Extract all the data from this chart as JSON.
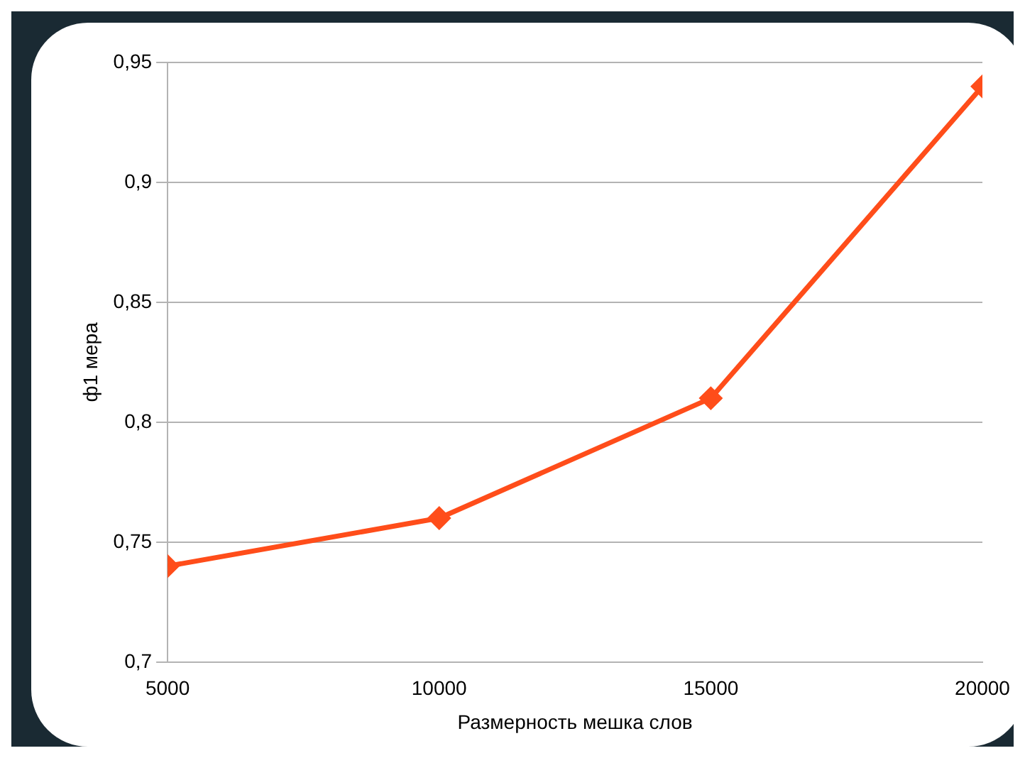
{
  "chart_data": {
    "type": "line",
    "xlabel": "Размерность мешка слов",
    "ylabel": "ф1 мера",
    "x": [
      5000,
      10000,
      15000,
      20000
    ],
    "series": [
      {
        "color": "#ff4d1a",
        "values": [
          0.74,
          0.76,
          0.81,
          0.94
        ]
      }
    ],
    "xlim": [
      5000,
      20000
    ],
    "xticks": [
      5000,
      10000,
      15000,
      20000
    ],
    "ylim": [
      0.7,
      0.95
    ],
    "yticks": [
      {
        "value": 0.7,
        "label": "0,7"
      },
      {
        "value": 0.75,
        "label": "0,75"
      },
      {
        "value": 0.8,
        "label": "0,8"
      },
      {
        "value": 0.85,
        "label": "0,85"
      },
      {
        "value": 0.9,
        "label": "0,9"
      },
      {
        "value": 0.95,
        "label": "0,95"
      }
    ],
    "grid": "y",
    "legend": false,
    "marker": "diamond",
    "line_style": "solid"
  }
}
